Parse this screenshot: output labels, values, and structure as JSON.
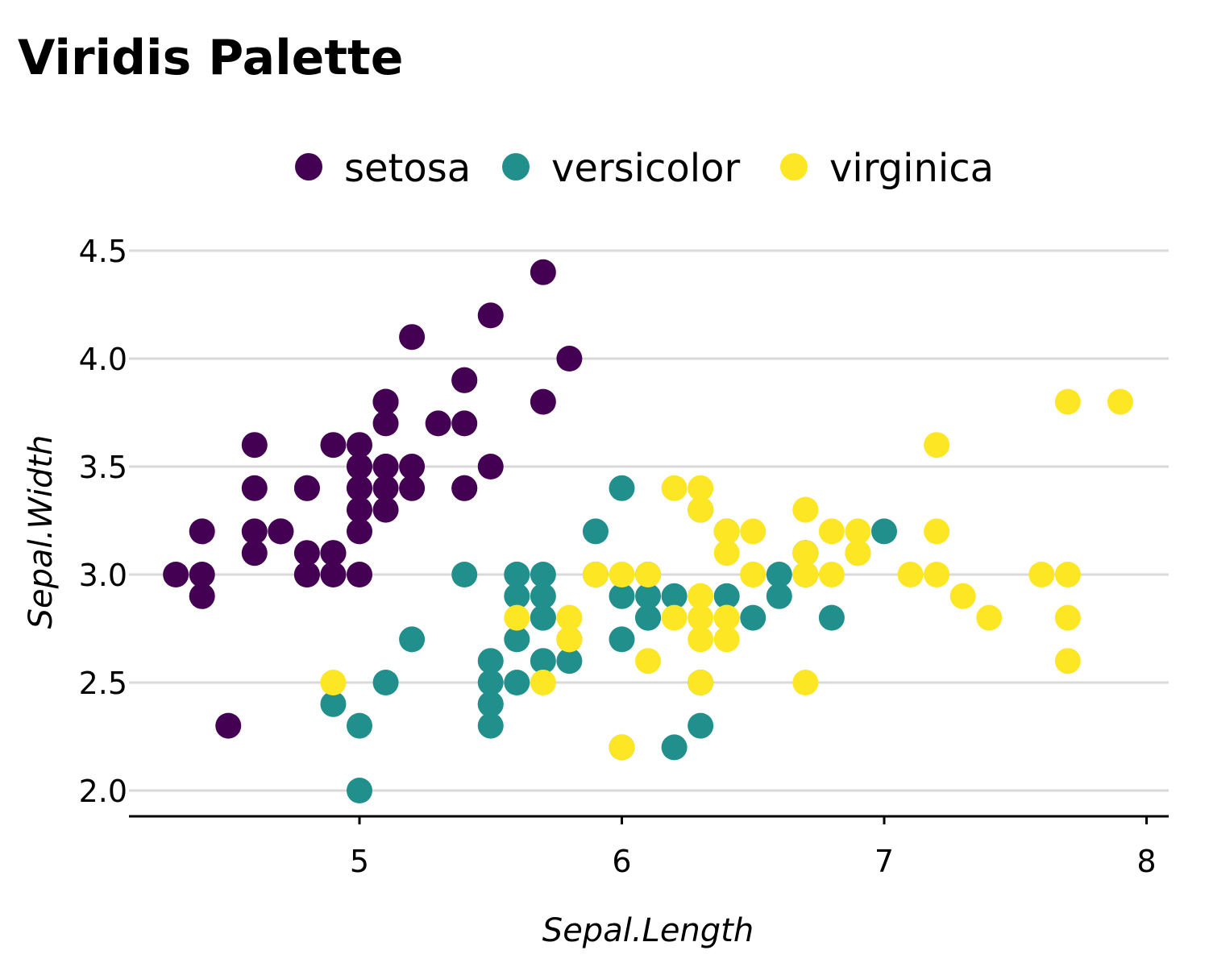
{
  "chart_data": {
    "type": "scatter",
    "title": "Viridis Palette",
    "xlabel": "Sepal.Length",
    "ylabel": "Sepal.Width",
    "xlim": [
      4.2,
      8.1
    ],
    "ylim": [
      1.88,
      4.6
    ],
    "xticks": [
      5,
      6,
      7,
      8
    ],
    "xtick_labels": [
      "5",
      "6",
      "7",
      "8"
    ],
    "yticks": [
      2.0,
      2.5,
      3.0,
      3.5,
      4.0,
      4.5
    ],
    "ytick_labels": [
      "2.0",
      "2.5",
      "3.0",
      "3.5",
      "4.0",
      "4.5"
    ],
    "grid": "horizontal",
    "legend_position": "top",
    "series": [
      {
        "name": "setosa",
        "color": "#440154",
        "points": [
          [
            5.1,
            3.5
          ],
          [
            4.9,
            3.0
          ],
          [
            4.7,
            3.2
          ],
          [
            4.6,
            3.1
          ],
          [
            5.0,
            3.6
          ],
          [
            5.4,
            3.9
          ],
          [
            4.6,
            3.4
          ],
          [
            5.0,
            3.4
          ],
          [
            4.4,
            2.9
          ],
          [
            4.9,
            3.1
          ],
          [
            5.4,
            3.7
          ],
          [
            4.8,
            3.4
          ],
          [
            4.8,
            3.0
          ],
          [
            4.3,
            3.0
          ],
          [
            5.8,
            4.0
          ],
          [
            5.7,
            4.4
          ],
          [
            5.4,
            3.9
          ],
          [
            5.1,
            3.5
          ],
          [
            5.7,
            3.8
          ],
          [
            5.1,
            3.8
          ],
          [
            5.4,
            3.4
          ],
          [
            5.1,
            3.7
          ],
          [
            4.6,
            3.6
          ],
          [
            5.1,
            3.3
          ],
          [
            4.8,
            3.4
          ],
          [
            5.0,
            3.0
          ],
          [
            5.0,
            3.4
          ],
          [
            5.2,
            3.5
          ],
          [
            5.2,
            3.4
          ],
          [
            4.7,
            3.2
          ],
          [
            4.8,
            3.1
          ],
          [
            5.4,
            3.4
          ],
          [
            5.2,
            4.1
          ],
          [
            5.5,
            4.2
          ],
          [
            4.9,
            3.1
          ],
          [
            5.0,
            3.2
          ],
          [
            5.5,
            3.5
          ],
          [
            4.9,
            3.6
          ],
          [
            4.4,
            3.0
          ],
          [
            5.1,
            3.4
          ],
          [
            5.0,
            3.5
          ],
          [
            4.5,
            2.3
          ],
          [
            4.4,
            3.2
          ],
          [
            5.0,
            3.5
          ],
          [
            5.1,
            3.8
          ],
          [
            4.8,
            3.0
          ],
          [
            5.1,
            3.8
          ],
          [
            4.6,
            3.2
          ],
          [
            5.3,
            3.7
          ],
          [
            5.0,
            3.3
          ]
        ]
      },
      {
        "name": "versicolor",
        "color": "#21908c",
        "points": [
          [
            7.0,
            3.2
          ],
          [
            6.4,
            3.2
          ],
          [
            6.9,
            3.1
          ],
          [
            5.5,
            2.3
          ],
          [
            6.5,
            2.8
          ],
          [
            5.7,
            2.8
          ],
          [
            6.3,
            3.3
          ],
          [
            4.9,
            2.4
          ],
          [
            6.6,
            2.9
          ],
          [
            5.2,
            2.7
          ],
          [
            5.0,
            2.0
          ],
          [
            5.9,
            3.0
          ],
          [
            6.0,
            2.2
          ],
          [
            6.1,
            2.9
          ],
          [
            5.6,
            2.9
          ],
          [
            6.7,
            3.1
          ],
          [
            5.6,
            3.0
          ],
          [
            5.8,
            2.7
          ],
          [
            6.2,
            2.2
          ],
          [
            5.6,
            2.5
          ],
          [
            5.9,
            3.2
          ],
          [
            6.1,
            2.8
          ],
          [
            6.3,
            2.5
          ],
          [
            6.1,
            2.8
          ],
          [
            6.4,
            2.9
          ],
          [
            6.6,
            3.0
          ],
          [
            6.8,
            2.8
          ],
          [
            6.7,
            3.0
          ],
          [
            6.0,
            2.9
          ],
          [
            5.7,
            2.6
          ],
          [
            5.5,
            2.4
          ],
          [
            5.5,
            2.4
          ],
          [
            5.8,
            2.7
          ],
          [
            6.0,
            2.7
          ],
          [
            5.4,
            3.0
          ],
          [
            6.0,
            3.4
          ],
          [
            6.7,
            3.1
          ],
          [
            6.3,
            2.3
          ],
          [
            5.6,
            3.0
          ],
          [
            5.5,
            2.5
          ],
          [
            5.5,
            2.6
          ],
          [
            6.1,
            3.0
          ],
          [
            5.8,
            2.6
          ],
          [
            5.0,
            2.3
          ],
          [
            5.6,
            2.7
          ],
          [
            5.7,
            3.0
          ],
          [
            5.7,
            2.9
          ],
          [
            6.2,
            2.9
          ],
          [
            5.1,
            2.5
          ],
          [
            5.7,
            2.8
          ]
        ]
      },
      {
        "name": "virginica",
        "color": "#fde725",
        "points": [
          [
            6.3,
            3.3
          ],
          [
            5.8,
            2.7
          ],
          [
            7.1,
            3.0
          ],
          [
            6.3,
            2.9
          ],
          [
            6.5,
            3.0
          ],
          [
            7.6,
            3.0
          ],
          [
            4.9,
            2.5
          ],
          [
            7.3,
            2.9
          ],
          [
            6.7,
            2.5
          ],
          [
            7.2,
            3.6
          ],
          [
            6.5,
            3.2
          ],
          [
            6.4,
            2.7
          ],
          [
            6.8,
            3.0
          ],
          [
            5.7,
            2.5
          ],
          [
            5.8,
            2.8
          ],
          [
            6.4,
            3.2
          ],
          [
            6.5,
            3.0
          ],
          [
            7.7,
            3.8
          ],
          [
            7.7,
            2.6
          ],
          [
            6.0,
            2.2
          ],
          [
            6.9,
            3.2
          ],
          [
            5.6,
            2.8
          ],
          [
            7.7,
            2.8
          ],
          [
            6.3,
            2.7
          ],
          [
            6.7,
            3.3
          ],
          [
            7.2,
            3.2
          ],
          [
            6.2,
            2.8
          ],
          [
            6.1,
            3.0
          ],
          [
            6.4,
            2.8
          ],
          [
            7.2,
            3.0
          ],
          [
            7.4,
            2.8
          ],
          [
            7.9,
            3.8
          ],
          [
            6.4,
            2.8
          ],
          [
            6.3,
            2.8
          ],
          [
            6.1,
            2.6
          ],
          [
            7.7,
            3.0
          ],
          [
            6.3,
            3.4
          ],
          [
            6.4,
            3.1
          ],
          [
            6.0,
            3.0
          ],
          [
            6.9,
            3.1
          ],
          [
            6.7,
            3.1
          ],
          [
            6.9,
            3.1
          ],
          [
            5.8,
            2.7
          ],
          [
            6.8,
            3.2
          ],
          [
            6.7,
            3.3
          ],
          [
            6.7,
            3.0
          ],
          [
            6.3,
            2.5
          ],
          [
            6.5,
            3.0
          ],
          [
            6.2,
            3.4
          ],
          [
            5.9,
            3.0
          ]
        ]
      }
    ]
  }
}
